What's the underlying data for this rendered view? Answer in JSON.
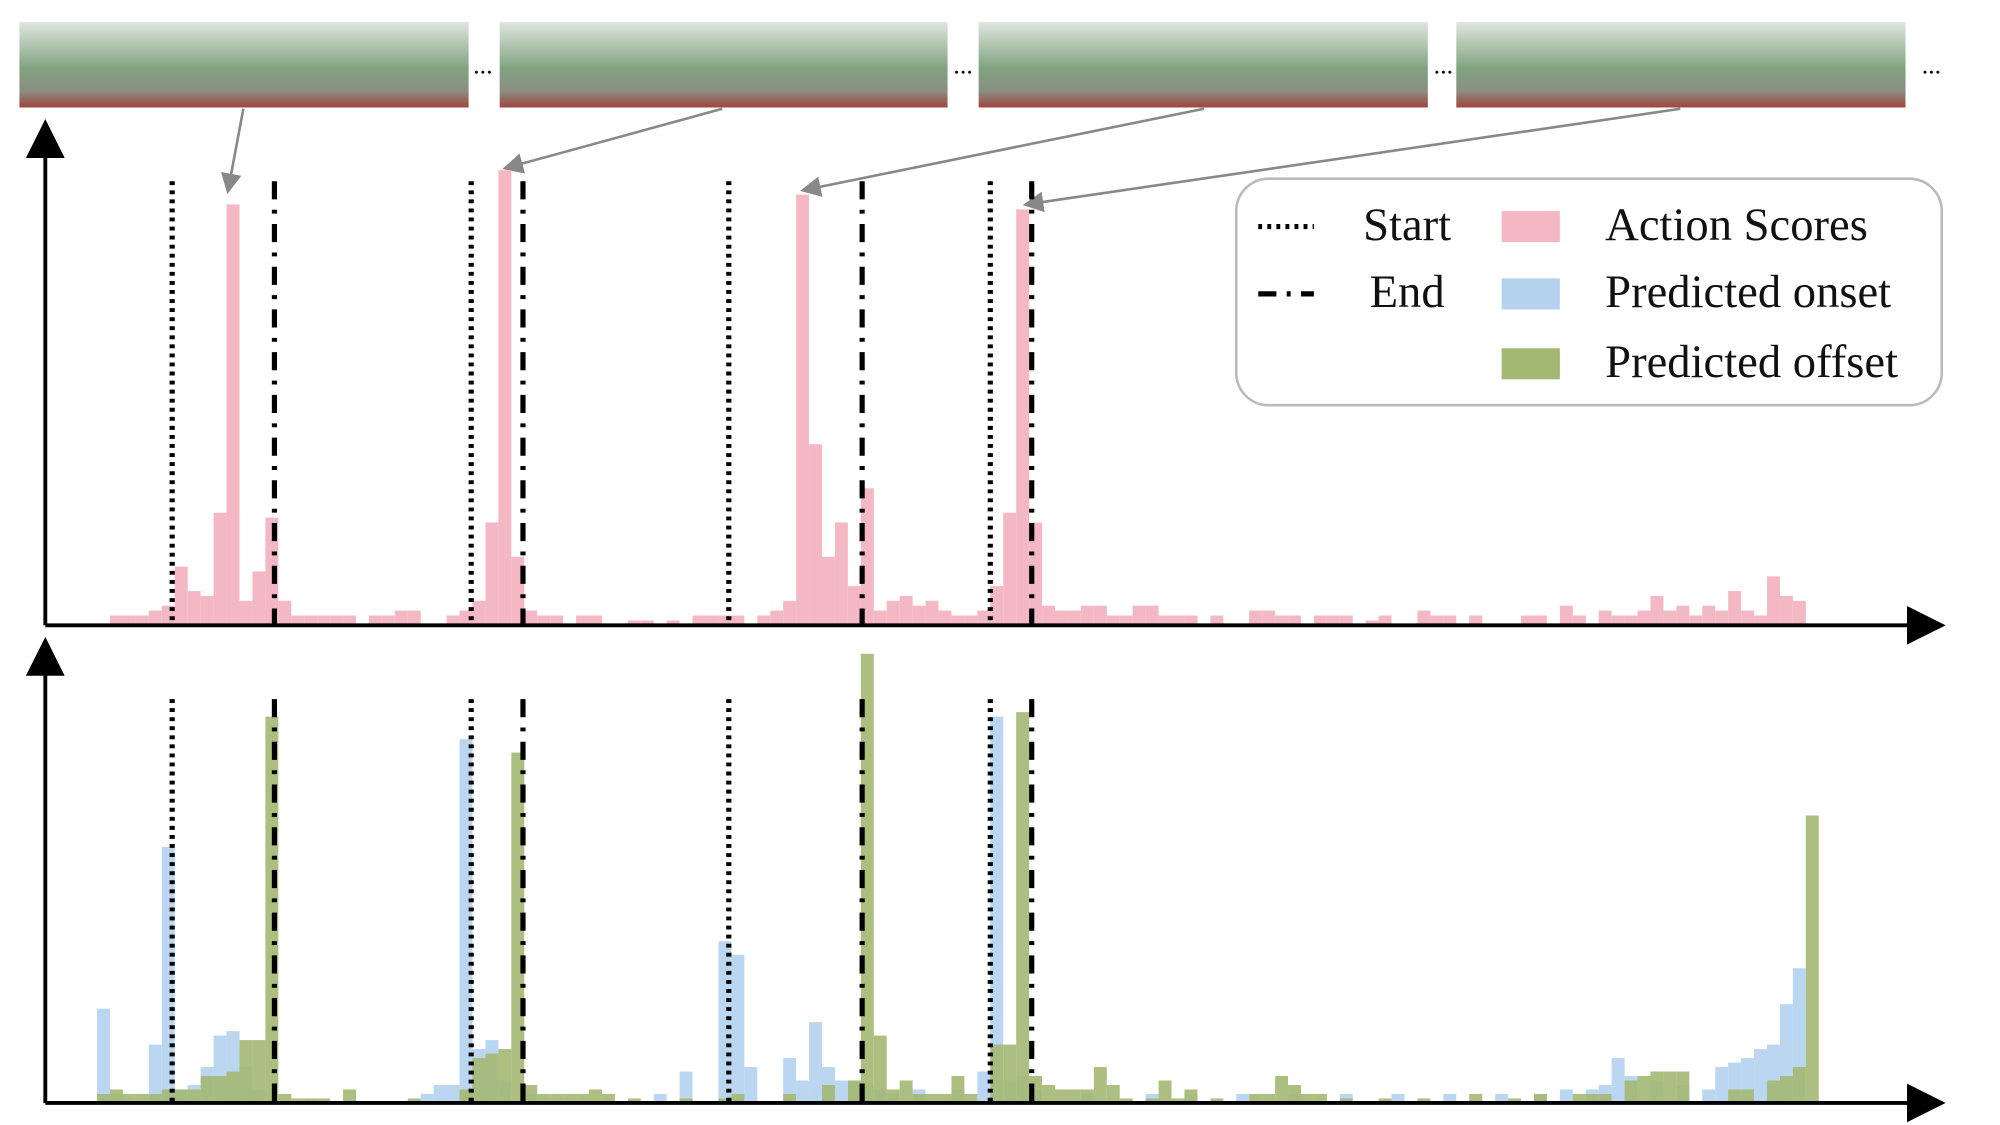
{
  "chart_data": [
    {
      "type": "bar",
      "xlim": [
        0,
        146.5
      ],
      "ylim": [
        0,
        1
      ],
      "markers": [
        {
          "name": "Start",
          "style": "dotted",
          "x": [
            9.8,
            32.9,
            52.8,
            73
          ]
        },
        {
          "name": "End",
          "style": "dashdot",
          "x": [
            17.7,
            36.9,
            63.1,
            76.2
          ]
        }
      ],
      "series": [
        {
          "name": "Action Scores",
          "color": "#f4b8c4",
          "x": [
            5,
            6,
            7,
            8,
            9,
            10,
            11,
            12,
            13,
            14,
            15,
            16,
            17,
            18,
            19,
            20,
            21,
            22,
            23,
            25,
            26,
            27,
            28,
            31,
            32,
            33,
            34,
            35,
            36,
            37,
            38,
            39,
            41,
            42,
            45,
            46,
            48,
            50,
            51,
            52,
            53,
            55,
            56,
            57,
            58,
            59,
            60,
            61,
            62,
            63,
            64,
            65,
            66,
            67,
            68,
            69,
            70,
            71,
            72,
            73,
            74,
            75,
            76,
            77,
            78,
            79,
            80,
            81,
            82,
            83,
            84,
            85,
            86,
            87,
            88,
            90,
            93,
            94,
            95,
            96,
            98,
            99,
            100,
            102,
            103,
            106,
            107,
            108,
            110,
            114,
            115,
            117,
            118,
            120,
            121,
            122,
            123,
            124,
            125,
            126,
            127,
            128,
            129,
            130,
            131,
            132,
            133,
            134,
            135
          ],
          "values": [
            0.02,
            0.02,
            0.02,
            0.03,
            0.04,
            0.12,
            0.07,
            0.06,
            0.23,
            0.86,
            0.05,
            0.11,
            0.22,
            0.05,
            0.02,
            0.02,
            0.02,
            0.02,
            0.02,
            0.02,
            0.02,
            0.03,
            0.03,
            0.02,
            0.03,
            0.05,
            0.21,
            0.93,
            0.14,
            0.03,
            0.02,
            0.02,
            0.02,
            0.02,
            0.01,
            0.01,
            0.01,
            0.02,
            0.02,
            0.02,
            0.02,
            0.02,
            0.03,
            0.05,
            0.88,
            0.37,
            0.14,
            0.21,
            0.08,
            0.28,
            0.03,
            0.05,
            0.06,
            0.04,
            0.05,
            0.03,
            0.02,
            0.02,
            0.03,
            0.08,
            0.23,
            0.85,
            0.21,
            0.04,
            0.03,
            0.03,
            0.04,
            0.04,
            0.02,
            0.02,
            0.04,
            0.04,
            0.02,
            0.02,
            0.02,
            0.02,
            0.03,
            0.03,
            0.02,
            0.02,
            0.02,
            0.02,
            0.02,
            0.01,
            0.02,
            0.03,
            0.02,
            0.02,
            0.02,
            0.02,
            0.02,
            0.04,
            0.02,
            0.03,
            0.02,
            0.02,
            0.03,
            0.06,
            0.03,
            0.04,
            0.02,
            0.04,
            0.03,
            0.07,
            0.03,
            0.02,
            0.1,
            0.06,
            0.05
          ]
        }
      ]
    },
    {
      "type": "bar",
      "xlim": [
        0,
        146.5
      ],
      "ylim": [
        0,
        1
      ],
      "series": [
        {
          "name": "Predicted onset",
          "color": "#b4d2ee",
          "x": [
            4,
            5,
            8,
            9,
            10,
            11,
            12,
            13,
            14,
            15,
            16,
            29,
            30,
            31,
            32,
            33,
            34,
            35,
            37,
            47,
            49,
            52,
            53,
            54,
            57,
            58,
            59,
            60,
            61,
            62,
            63,
            64,
            65,
            67,
            70,
            72,
            73,
            74,
            75,
            76,
            80,
            85,
            88,
            92,
            96,
            100,
            104,
            108,
            112,
            115,
            117,
            119,
            120,
            121,
            122,
            124,
            126,
            128,
            129,
            130,
            131,
            132,
            133,
            134,
            135
          ],
          "values": [
            0.21,
            0.02,
            0.13,
            0.57,
            0.03,
            0.04,
            0.08,
            0.15,
            0.16,
            0.08,
            0.03,
            0.02,
            0.04,
            0.04,
            0.81,
            0.12,
            0.14,
            0.05,
            0.02,
            0.02,
            0.07,
            0.36,
            0.33,
            0.08,
            0.1,
            0.05,
            0.18,
            0.08,
            0.05,
            0.05,
            0.04,
            0.03,
            0.02,
            0.03,
            0.03,
            0.07,
            0.86,
            0.05,
            0.06,
            0.03,
            0.02,
            0.02,
            0.02,
            0.02,
            0.02,
            0.02,
            0.02,
            0.02,
            0.02,
            0.02,
            0.03,
            0.03,
            0.04,
            0.1,
            0.06,
            0.05,
            0.04,
            0.03,
            0.08,
            0.09,
            0.1,
            0.12,
            0.13,
            0.22,
            0.3
          ]
        },
        {
          "name": "Predicted offset",
          "color": "#a3b872",
          "x": [
            4,
            5,
            6,
            7,
            8,
            9,
            10,
            11,
            12,
            13,
            14,
            15,
            16,
            17,
            18,
            19,
            20,
            21,
            23,
            28,
            32,
            33,
            34,
            35,
            36,
            37,
            38,
            39,
            40,
            41,
            42,
            43,
            45,
            49,
            52,
            53,
            57,
            60,
            62,
            63,
            64,
            65,
            66,
            67,
            68,
            69,
            70,
            71,
            73,
            74,
            75,
            76,
            77,
            78,
            79,
            80,
            81,
            82,
            83,
            85,
            86,
            87,
            88,
            90,
            93,
            94,
            95,
            96,
            97,
            98,
            100,
            103,
            106,
            110,
            113,
            115,
            118,
            119,
            120,
            122,
            123,
            124,
            125,
            126,
            130,
            131,
            133,
            134,
            135,
            136
          ],
          "values": [
            0.02,
            0.03,
            0.02,
            0.02,
            0.02,
            0.03,
            0.03,
            0.03,
            0.06,
            0.06,
            0.07,
            0.14,
            0.14,
            0.86,
            0.02,
            0.01,
            0.01,
            0.01,
            0.03,
            0.01,
            0.03,
            0.1,
            0.11,
            0.12,
            0.78,
            0.04,
            0.02,
            0.02,
            0.02,
            0.02,
            0.03,
            0.02,
            0.01,
            0.01,
            0.01,
            0.02,
            0.02,
            0.04,
            0.05,
            1.0,
            0.15,
            0.03,
            0.05,
            0.02,
            0.02,
            0.02,
            0.06,
            0.02,
            0.13,
            0.13,
            0.87,
            0.06,
            0.04,
            0.03,
            0.03,
            0.03,
            0.08,
            0.04,
            0.01,
            0.01,
            0.05,
            0.01,
            0.03,
            0.01,
            0.02,
            0.02,
            0.06,
            0.04,
            0.02,
            0.02,
            0.01,
            0.01,
            0.01,
            0.02,
            0.01,
            0.02,
            0.02,
            0.02,
            0.02,
            0.05,
            0.06,
            0.07,
            0.07,
            0.07,
            0.03,
            0.03,
            0.05,
            0.06,
            0.08,
            0.64
          ]
        }
      ]
    }
  ],
  "thumbnail_separator": "..."
}
